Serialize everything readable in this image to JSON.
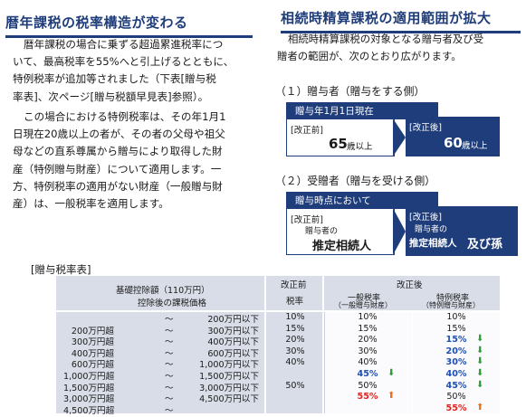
{
  "left": {
    "title": "暦年課税の税率構造が変わる",
    "para1": [
      "暦年課税の場合に乗ずる超過累進税率につ",
      "いて、最高税率を55%へと引上げるとともに、",
      "特例税率が追加等されました（下表[贈与税",
      "率表]、次ページ[贈与税額早見表]参照）。"
    ],
    "para2": [
      "この場合における特例税率は、その年1月1",
      "日現在20歳以上の者が、その者の父母や祖父",
      "母などの直系尊属から贈与により取得した財",
      "産（特例贈与財産）について適用します。一",
      "方、特例税率の適用がない財産（一般贈与財",
      "産）は、一般税率を適用します。"
    ]
  },
  "right": {
    "title": "相続時精算課税の適用範囲が拡大",
    "para": [
      "相続時精算課税の対象となる贈与者及び受",
      "贈者の範囲が、次のとおり広がります。"
    ],
    "s1": {
      "heading": "（１）贈与者（贈与をする側）",
      "bar": "贈与年1月1日現在",
      "before_label": "[改正前]",
      "before_value": "65",
      "before_unit": "歳以上",
      "after_label": "[改正後]",
      "after_value": "60",
      "after_unit": "歳以上"
    },
    "s2": {
      "heading": "（２）受贈者（贈与を受ける側）",
      "bar": "贈与時点において",
      "before_label": "[改正前]",
      "before_sub": "贈与者の",
      "before_value": "推定相続人",
      "after_label": "[改正後]",
      "after_sub": "贈与者の",
      "after_value": "推定相続人",
      "after_extra": "及び孫"
    }
  },
  "table": {
    "title": "[贈与税率表]",
    "header_base": "基礎控除額（110万円）",
    "header_base2": "控除後の課税価格",
    "header_before": "改正前",
    "header_before_sub": "税率",
    "header_after": "改正後",
    "header_general": "一般税率",
    "header_general_sub": "（一般贈与財産）",
    "header_special": "特例税率",
    "header_special_sub": "（特例贈与財産）",
    "rows": [
      {
        "from": "",
        "to": "200万円以下",
        "before": "10%",
        "general": "10%",
        "special": "10%"
      },
      {
        "from": "200万円超",
        "to": "300万円以下",
        "before": "15%",
        "general": "15%",
        "special": "15%"
      },
      {
        "from": "300万円超",
        "to": "400万円以下",
        "before": "20%",
        "general": "20%",
        "special": "15%"
      },
      {
        "from": "400万円超",
        "to": "600万円以下",
        "before": "30%",
        "general": "30%",
        "special": "20%"
      },
      {
        "from": "600万円超",
        "to": "1,000万円以下",
        "before": "40%",
        "general": "40%",
        "special": "30%"
      },
      {
        "from": "1,000万円超",
        "to": "1,500万円以下",
        "before": "",
        "general": "45%",
        "special": "40%"
      },
      {
        "from": "1,500万円超",
        "to": "3,000万円以下",
        "before": "50%",
        "general": "50%",
        "special": "45%"
      },
      {
        "from": "3,000万円超",
        "to": "4,500万円以下",
        "before": "",
        "general": "55%",
        "special": "50%"
      },
      {
        "from": "4,500万円超",
        "to": "",
        "before": "",
        "general": "",
        "special": "55%"
      }
    ],
    "tilde": "～",
    "colors": {
      "up": "#e8721c",
      "down": "#2e9a3a",
      "header": "#d8dde8",
      "navy": "#1f3d7a"
    }
  }
}
